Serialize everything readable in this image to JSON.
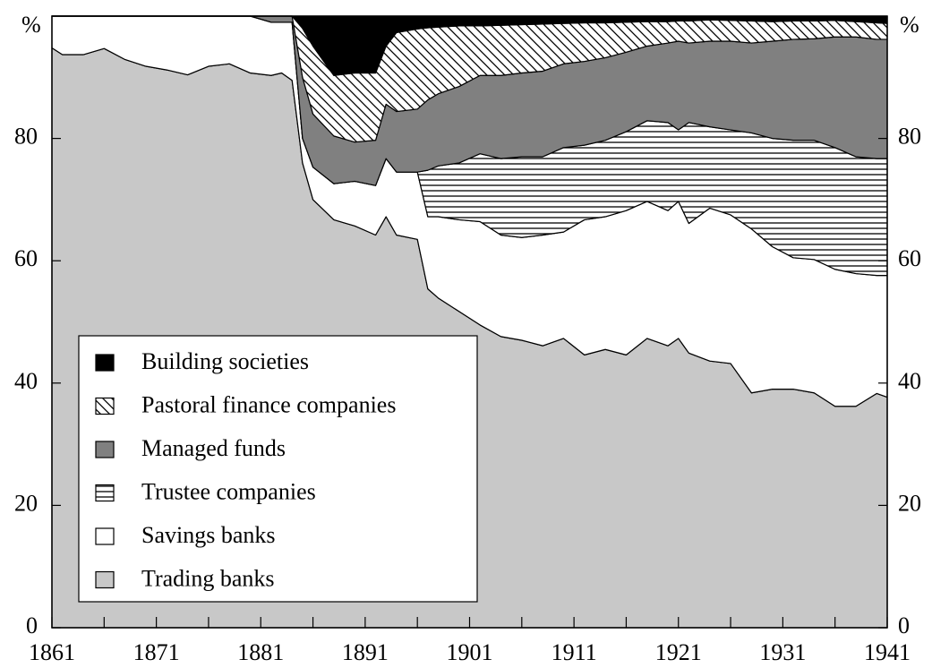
{
  "chart_data": {
    "type": "stacked_area",
    "y_label": "%",
    "y2_label": "%",
    "x": [
      1861,
      1862,
      1864,
      1866,
      1868,
      1870,
      1872,
      1874,
      1876,
      1878,
      1880,
      1882,
      1883,
      1884,
      1885,
      1886,
      1888,
      1890,
      1892,
      1893,
      1894,
      1896,
      1897,
      1898,
      1900,
      1902,
      1904,
      1906,
      1908,
      1910,
      1912,
      1914,
      1916,
      1918,
      1920,
      1921,
      1922,
      1924,
      1926,
      1928,
      1930,
      1932,
      1934,
      1936,
      1938,
      1940,
      1941
    ],
    "series": [
      {
        "name": "Trading banks",
        "color": "#c8c8c8",
        "values": [
          94.8,
          93.7,
          93.7,
          94.7,
          92.9,
          91.8,
          91.2,
          90.4,
          91.8,
          92.2,
          90.7,
          90.3,
          90.7,
          89.5,
          76,
          70,
          66.7,
          65.7,
          64.2,
          67.2,
          64.2,
          63.5,
          55.4,
          53.9,
          51.7,
          49.5,
          47.6,
          47.0,
          46.1,
          47.3,
          44.6,
          45.5,
          44.6,
          47.3,
          46.1,
          47.3,
          44.9,
          43.6,
          43.2,
          38.4,
          39.0,
          39.0,
          38.4,
          36.2,
          36.2,
          38.3,
          37.7
        ]
      },
      {
        "name": "Savings banks",
        "color": "#ffffff",
        "values": [
          5.2,
          6.3,
          6.3,
          5.3,
          7.1,
          8.2,
          8.8,
          9.6,
          8.2,
          7.8,
          9.3,
          8.7,
          8.3,
          9.5,
          4,
          5.3,
          5.9,
          7.3,
          8.1,
          9.5,
          10.3,
          11.0,
          11.8,
          13.3,
          15.0,
          16.9,
          16.6,
          16.8,
          18.1,
          17.4,
          22.1,
          21.7,
          23.6,
          22.4,
          22.1,
          22.4,
          21.2,
          25.0,
          24.3,
          26.8,
          23.3,
          21.5,
          21.8,
          22.4,
          21.7,
          19.3,
          19.9
        ]
      },
      {
        "name": "Trustee companies",
        "color": "#000000",
        "pattern": "horizontal",
        "values": [
          0,
          0,
          0,
          0,
          0,
          0,
          0,
          0,
          0,
          0,
          0,
          0,
          0,
          0,
          0,
          0,
          0,
          0,
          0,
          0,
          0,
          0,
          7.6,
          8.3,
          9.3,
          11.1,
          12.5,
          13.2,
          12.8,
          13.8,
          12.2,
          12.5,
          12.9,
          13.2,
          14.4,
          11.7,
          16.5,
          13.3,
          13.9,
          15.7,
          17.7,
          19.2,
          19.5,
          19.9,
          19.1,
          19.1,
          19.1
        ]
      },
      {
        "name": "Managed funds",
        "color": "#808080",
        "values": [
          0,
          0,
          0,
          0,
          0,
          0,
          0,
          0,
          0,
          0,
          0,
          1,
          1,
          1,
          10,
          8.7,
          7.8,
          6.4,
          7.4,
          8.9,
          9.9,
          10.3,
          11.5,
          11.8,
          12.5,
          12.8,
          13.6,
          13.7,
          14.0,
          13.7,
          13.7,
          13.5,
          13.0,
          12.2,
          13.0,
          14.5,
          13.0,
          14.0,
          14.5,
          14.7,
          15.9,
          16.5,
          16.6,
          18.1,
          19.6,
          19.5,
          19.5
        ]
      },
      {
        "name": "Pastoral finance companies",
        "color": "#000000",
        "pattern": "diagonal",
        "values": [
          0,
          0,
          0,
          0,
          0,
          0,
          0,
          0,
          0,
          0,
          0,
          0,
          0,
          0,
          8,
          11.1,
          9.9,
          11.3,
          11.0,
          9.5,
          12.9,
          13.1,
          11.8,
          10.9,
          9.9,
          8.1,
          8.2,
          7.9,
          7.7,
          6.6,
          6.3,
          5.7,
          4.9,
          4.0,
          3.5,
          3.3,
          3.6,
          3.5,
          3.4,
          3.6,
          3.2,
          3.0,
          2.9,
          2.7,
          2.5,
          2.7,
          2.6
        ]
      },
      {
        "name": "Building societies",
        "color": "#000000",
        "values": [
          0,
          0,
          0,
          0,
          0,
          0,
          0,
          0,
          0,
          0,
          0,
          0,
          0,
          0,
          2,
          4.9,
          9.7,
          9.3,
          9.3,
          4.9,
          2.7,
          2.1,
          1.9,
          1.8,
          1.6,
          1.6,
          1.5,
          1.4,
          1.3,
          1.2,
          1.1,
          1.1,
          1.0,
          0.9,
          0.9,
          0.8,
          0.8,
          0.6,
          0.7,
          0.8,
          0.9,
          0.8,
          0.8,
          0.7,
          0.9,
          1.1,
          1.2
        ]
      }
    ],
    "xlim": [
      1861,
      1941
    ],
    "xticks": [
      1861,
      1871,
      1881,
      1891,
      1901,
      1911,
      1921,
      1931,
      1941
    ],
    "xticks_minor": [
      1866,
      1876,
      1886,
      1896,
      1906,
      1916,
      1926,
      1936
    ],
    "ylim": [
      0,
      100
    ],
    "yticks": [
      0,
      20,
      40,
      60,
      80
    ],
    "y2lim": [
      0,
      100
    ],
    "y2ticks": [
      0,
      20,
      40,
      60,
      80
    ],
    "legend": "lower-left"
  }
}
